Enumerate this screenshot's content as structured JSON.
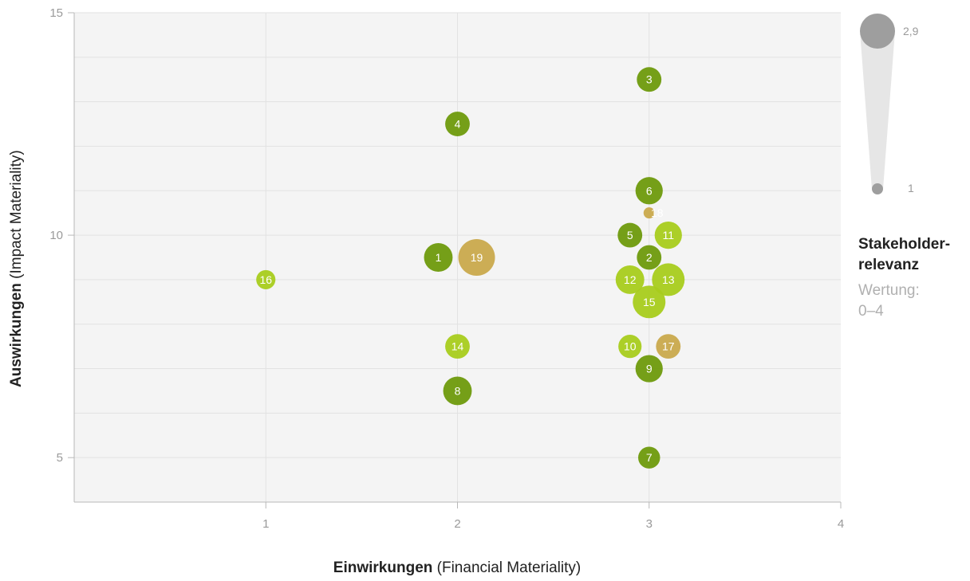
{
  "chart_data": {
    "type": "scatter",
    "subtype": "bubble",
    "xlabel_bold": "Einwirkungen",
    "xlabel_rest": " (Financial Materiality)",
    "ylabel_bold": "Auswirkungen",
    "ylabel_rest": " (Impact Materiality)",
    "xlim": [
      0,
      4
    ],
    "ylim": [
      4,
      15
    ],
    "x_ticks": [
      1,
      2,
      3,
      4
    ],
    "y_ticks": [
      5,
      10,
      15
    ],
    "grid": true,
    "colors": {
      "dark_green": "#6e9a0c",
      "light_green": "#a8cc1c",
      "gold": "#c9a94c"
    },
    "points": [
      {
        "label": "1",
        "x": 1.9,
        "y": 9.5,
        "size": 2.3,
        "color": "dark_green"
      },
      {
        "label": "2",
        "x": 3.0,
        "y": 9.5,
        "size": 2.0,
        "color": "dark_green"
      },
      {
        "label": "3",
        "x": 3.0,
        "y": 13.5,
        "size": 2.0,
        "color": "dark_green"
      },
      {
        "label": "4",
        "x": 2.0,
        "y": 12.5,
        "size": 2.0,
        "color": "dark_green"
      },
      {
        "label": "5",
        "x": 2.9,
        "y": 10.0,
        "size": 2.0,
        "color": "dark_green"
      },
      {
        "label": "6",
        "x": 3.0,
        "y": 11.0,
        "size": 2.2,
        "color": "dark_green"
      },
      {
        "label": "7",
        "x": 3.0,
        "y": 5.0,
        "size": 1.8,
        "color": "dark_green"
      },
      {
        "label": "8",
        "x": 2.0,
        "y": 6.5,
        "size": 2.3,
        "color": "dark_green"
      },
      {
        "label": "9",
        "x": 3.0,
        "y": 7.0,
        "size": 2.2,
        "color": "dark_green"
      },
      {
        "label": "10",
        "x": 2.9,
        "y": 7.5,
        "size": 1.9,
        "color": "light_green"
      },
      {
        "label": "11",
        "x": 3.1,
        "y": 10.0,
        "size": 2.2,
        "color": "light_green"
      },
      {
        "label": "12",
        "x": 2.9,
        "y": 9.0,
        "size": 2.3,
        "color": "light_green"
      },
      {
        "label": "13",
        "x": 3.1,
        "y": 9.0,
        "size": 2.6,
        "color": "light_green"
      },
      {
        "label": "14",
        "x": 2.0,
        "y": 7.5,
        "size": 2.0,
        "color": "light_green"
      },
      {
        "label": "15",
        "x": 3.0,
        "y": 8.5,
        "size": 2.6,
        "color": "light_green"
      },
      {
        "label": "16",
        "x": 1.0,
        "y": 9.0,
        "size": 1.6,
        "color": "light_green"
      },
      {
        "label": "17",
        "x": 3.1,
        "y": 7.5,
        "size": 2.0,
        "color": "gold"
      },
      {
        "label": "18",
        "x": 3.0,
        "y": 10.5,
        "size": 1.0,
        "color": "gold"
      },
      {
        "label": "19",
        "x": 2.1,
        "y": 9.5,
        "size": 2.9,
        "color": "gold"
      }
    ],
    "size_legend": {
      "title": "Stakeholder-\nrelevanz",
      "subtitle": "Wertung:\n0–4",
      "max": "2,9",
      "min": "1"
    }
  }
}
